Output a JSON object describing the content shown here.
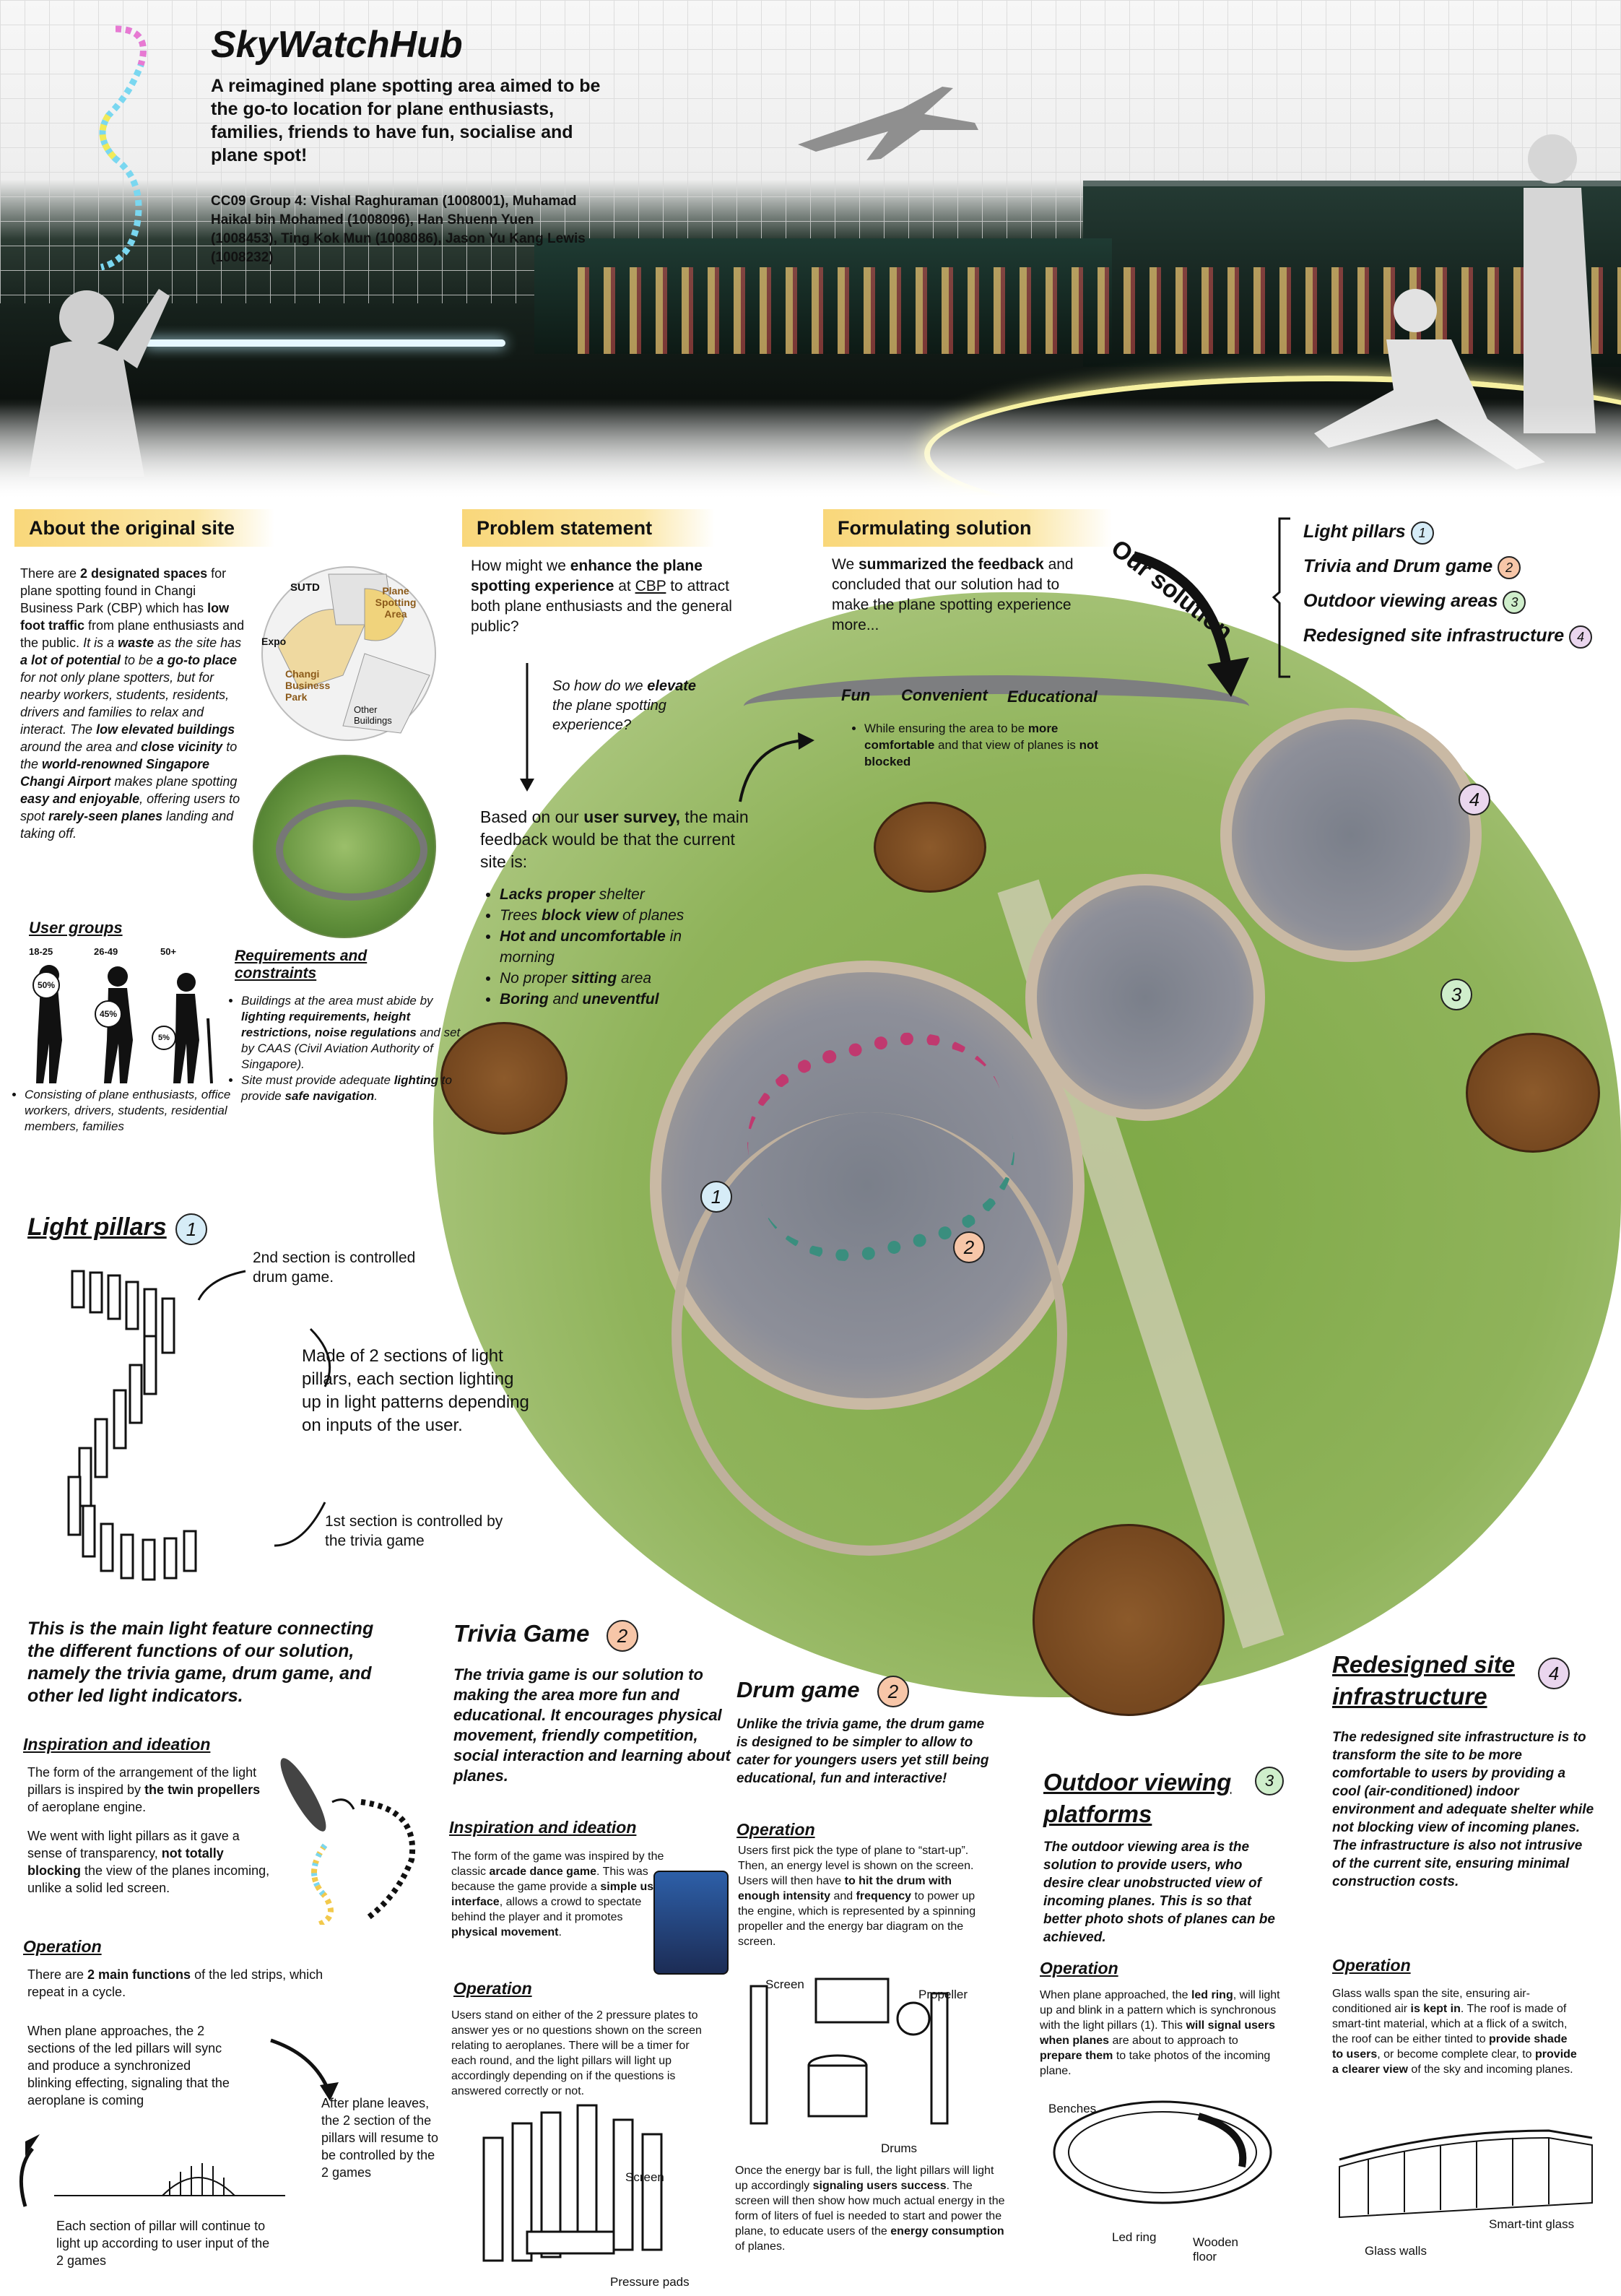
{
  "header": {
    "title": "SkyWatchHub",
    "tagline": "A reimagined plane spotting area aimed to be the go-to location for plane enthusiasts, families, friends to have fun, socialise and plane spot!",
    "credits": "CC09 Group 4: Vishal Raghuraman (1008001), Muhamad Haikal bin Mohamed (1008096), Han Shuenn Yuen (1008453), Ting Kok Mun (1008086), Jason Yu Kang Lewis (1008232)"
  },
  "original_site": {
    "heading": "About the original site",
    "para": [
      {
        "t": "There are "
      },
      {
        "t": "2 designated spaces",
        "b": true
      },
      {
        "t": " for plane spotting found in Changi Business Park (CBP) which has "
      },
      {
        "t": "low foot traffic",
        "b": true
      },
      {
        "t": " from plane enthusiasts and the public. "
      },
      {
        "t": "It is a ",
        "i": true
      },
      {
        "t": "waste",
        "b": true,
        "i": true
      },
      {
        "t": " as the site has ",
        "i": true
      },
      {
        "t": "a lot of potential",
        "b": true,
        "i": true
      },
      {
        "t": " to be ",
        "i": true
      },
      {
        "t": "a go-to place",
        "b": true,
        "i": true
      },
      {
        "t": " for not only plane spotters, but for nearby workers, students, residents, drivers and families to relax and interact. ",
        "i": true
      },
      {
        "t": "The ",
        "i": true
      },
      {
        "t": "low elevated buildings",
        "b": true,
        "i": true
      },
      {
        "t": " around the area and ",
        "i": true
      },
      {
        "t": "close vicinity",
        "b": true,
        "i": true
      },
      {
        "t": " to the ",
        "i": true
      },
      {
        "t": "world-renowned Singapore Changi Airport",
        "b": true,
        "i": true
      },
      {
        "t": " makes plane spotting ",
        "i": true
      },
      {
        "t": "easy and enjoyable",
        "b": true,
        "i": true
      },
      {
        "t": ", offering users to spot ",
        "i": true
      },
      {
        "t": "rarely-seen planes",
        "b": true,
        "i": true
      },
      {
        "t": " landing and taking off.",
        "i": true
      }
    ],
    "map_labels": [
      "SUTD",
      "Plane Spotting Area",
      "Expo",
      "Changi Business Park",
      "Other Buildings"
    ],
    "user_groups": {
      "heading": "User groups",
      "ages": [
        "18-25",
        "26-49",
        "50+"
      ],
      "shares": [
        "50%",
        "45%",
        "5%"
      ],
      "note": "Consisting of plane enthusiasts, office workers, drivers, students, residential members, families"
    },
    "requirements": {
      "heading": "Requirements and constraints",
      "item1": [
        {
          "t": "Buildings at the area must abide by ",
          "i": true
        },
        {
          "t": "lighting requirements, height restrictions, noise regulations",
          "b": true,
          "i": true
        },
        {
          "t": " and set by CAAS (Civil Aviation Authority of Singapore).",
          "i": true
        }
      ],
      "item2": [
        {
          "t": "Site must provide adequate ",
          "i": true
        },
        {
          "t": "lighting",
          "b": true,
          "i": true
        },
        {
          "t": " to provide ",
          "i": true
        },
        {
          "t": "safe navigation",
          "b": true,
          "i": true
        },
        {
          "t": ".",
          "i": true
        }
      ]
    }
  },
  "problem": {
    "heading": "Problem statement",
    "para": [
      {
        "t": "How might we "
      },
      {
        "t": "enhance the plane spotting experience",
        "b": true
      },
      {
        "t": " at "
      },
      {
        "t": "CBP",
        "u": true
      },
      {
        "t": " to attract both plane enthusiasts and the general public?"
      }
    ],
    "question": [
      {
        "t": "So how do we ",
        "i": true
      },
      {
        "t": "elevate",
        "b": true,
        "i": true
      },
      {
        "t": " the plane spotting experience?",
        "i": true
      }
    ],
    "survey": [
      {
        "t": "Based on our "
      },
      {
        "t": "user survey,",
        "b": true
      },
      {
        "t": " the main feedback would be that the current site is:"
      }
    ],
    "bullets": [
      [
        {
          "t": "Lacks proper",
          "b": true,
          "i": true
        },
        {
          "t": " shelter",
          "i": true
        }
      ],
      [
        {
          "t": "Trees ",
          "i": true
        },
        {
          "t": "block view",
          "b": true,
          "i": true
        },
        {
          "t": " of planes",
          "i": true
        }
      ],
      [
        {
          "t": "Hot and uncomfortable",
          "b": true,
          "i": true
        },
        {
          "t": " in morning",
          "i": true
        }
      ],
      [
        {
          "t": "No proper ",
          "i": true
        },
        {
          "t": "sitting",
          "b": true,
          "i": true
        },
        {
          "t": " area",
          "i": true
        }
      ],
      [
        {
          "t": "Boring",
          "b": true,
          "i": true
        },
        {
          "t": " and ",
          "i": true
        },
        {
          "t": "uneventful",
          "b": true,
          "i": true
        }
      ]
    ]
  },
  "formulating": {
    "heading": "Formulating solution",
    "para": [
      {
        "t": "We "
      },
      {
        "t": "summarized the feedback",
        "b": true
      },
      {
        "t": " and concluded that our solution had to make the plane spotting experience more..."
      }
    ],
    "words": [
      "Fun",
      "Convenient",
      "Educational"
    ],
    "note": [
      {
        "t": "While ensuring the area to be "
      },
      {
        "t": "more comfortable",
        "b": true
      },
      {
        "t": " and that view of planes is "
      },
      {
        "t": "not blocked",
        "b": true
      }
    ]
  },
  "our_solution": {
    "label": "Our solution",
    "items": [
      {
        "label": "Light pillars",
        "num": "1"
      },
      {
        "label": "Trivia and Drum game",
        "num": "2"
      },
      {
        "label": "Outdoor viewing areas",
        "num": "3"
      },
      {
        "label": "Redesigned site infrastructure",
        "num": "4"
      }
    ]
  },
  "light_pillars": {
    "heading": "Light pillars",
    "num": "1",
    "note_2nd": "2nd section is controlled drum game.",
    "note_mid": "Made of 2 sections of light pillars, each section lighting up in light patterns depending on inputs of the user.",
    "note_1st": "1st section is controlled by the trivia game",
    "summary": "This is the main light feature connecting the different functions of our solution, namely the trivia game, drum game, and other led light indicators.",
    "insp_heading": "Inspiration and ideation",
    "insp1": [
      {
        "t": "The form of the arrangement of the light pillars is inspired by "
      },
      {
        "t": "the twin propellers",
        "b": true
      },
      {
        "t": " of aeroplane engine."
      }
    ],
    "insp2": [
      {
        "t": "We went with light pillars as it gave a sense of transparency, "
      },
      {
        "t": "not totally blocking",
        "b": true
      },
      {
        "t": " the view of the planes incoming, unlike a solid led screen."
      }
    ],
    "op_heading": "Operation",
    "op1": [
      {
        "t": "There are "
      },
      {
        "t": "2 main functions",
        "b": true
      },
      {
        "t": " of the led strips, which repeat in a cycle."
      }
    ],
    "op2": "When plane approaches, the 2 sections of the led pillars will sync and produce a synchronized blinking effecting, signaling that the aeroplane is coming",
    "op3": "After plane leaves, the 2 section of the pillars will resume to be controlled by the 2 games",
    "op4": "Each section of pillar will continue to light up according to user input of the 2 games"
  },
  "trivia": {
    "heading": "Trivia Game",
    "num": "2",
    "summary": "The trivia game is our solution to making the area more fun and educational. It encourages physical movement, friendly competition, social interaction and learning about planes.",
    "insp_heading": "Inspiration and ideation",
    "insp": [
      {
        "t": "The form of the game was inspired by the classic "
      },
      {
        "t": "arcade dance game",
        "b": true
      },
      {
        "t": ". This was because the game provide a "
      },
      {
        "t": "simple user interface",
        "b": true
      },
      {
        "t": ", allows a crowd to spectate behind the player and it promotes "
      },
      {
        "t": "physical movement",
        "b": true
      },
      {
        "t": "."
      }
    ],
    "op_heading": "Operation",
    "op": "Users stand on either of the 2 pressure plates to answer yes or no questions shown on the screen relating to aeroplanes. There will be a timer for each round, and the light pillars will light up accordingly depending on if the questions is answered correctly or not.",
    "labels": [
      "Screen",
      "Pressure pads"
    ]
  },
  "drum": {
    "heading": "Drum game",
    "num": "2",
    "summary": "Unlike the trivia game, the drum game is designed to be simpler to allow to cater for youngers users yet still being educational, fun and interactive!",
    "op_heading": "Operation",
    "op": [
      {
        "t": "Users first pick the type of plane to “start-up”. Then, an energy level is shown on the screen. Users will then have "
      },
      {
        "t": "to hit the drum with enough intensity",
        "b": true
      },
      {
        "t": " and "
      },
      {
        "t": "frequency",
        "b": true
      },
      {
        "t": " to power up the engine, which is represented by a spinning propeller and the energy bar diagram on the screen."
      }
    ],
    "op2": [
      {
        "t": "Once the energy bar is full, the light pillars will light up accordingly "
      },
      {
        "t": "signaling users success",
        "b": true
      },
      {
        "t": ". The screen will then show how much actual energy in the form of liters of fuel is needed to start and power the plane, to educate users of the "
      },
      {
        "t": "energy consumption",
        "b": true
      },
      {
        "t": " of planes."
      }
    ],
    "labels": [
      "Screen",
      "Propeller",
      "Drums"
    ]
  },
  "outdoor": {
    "heading": "Outdoor viewing platforms",
    "num": "3",
    "summary": "The outdoor viewing area is the solution to provide users, who desire clear unobstructed view of incoming planes. This is so that better photo shots of planes can be achieved.",
    "op_heading": "Operation",
    "op": [
      {
        "t": "When plane approached, the "
      },
      {
        "t": "led ring",
        "b": true
      },
      {
        "t": ", will light up and blink in a pattern which is synchronous with the light pillars (1). This "
      },
      {
        "t": "will signal users when planes",
        "b": true
      },
      {
        "t": " are about to approach to "
      },
      {
        "t": "prepare them",
        "b": true
      },
      {
        "t": " to take photos of the incoming plane."
      }
    ],
    "labels": [
      "Benches",
      "Led ring",
      "Wooden floor"
    ]
  },
  "redesigned": {
    "heading": "Redesigned site infrastructure",
    "num": "4",
    "summary": "The redesigned site infrastructure is to transform the site to be more comfortable to users by providing a cool (air-conditioned) indoor environment and adequate shelter while not blocking view of incoming planes. The infrastructure is also not intrusive of the current site, ensuring minimal construction costs.",
    "op_heading": "Operation",
    "op": [
      {
        "t": "Glass walls span the site, ensuring air-conditioned air "
      },
      {
        "t": "is kept in",
        "b": true
      },
      {
        "t": ". The roof is made of smart-tint material, which at a flick of a switch, the roof can be either tinted to "
      },
      {
        "t": "provide shade to users",
        "b": true
      },
      {
        "t": ", or become complete clear, to "
      },
      {
        "t": "provide a clearer view",
        "b": true
      },
      {
        "t": " of the sky and incoming planes."
      }
    ],
    "labels": [
      "Smart-tint glass",
      "Glass walls"
    ]
  },
  "site_markers": [
    "1",
    "2",
    "3",
    "4"
  ],
  "colors": {
    "band": "#f9d77a",
    "c1": "#d6ecf7",
    "c2": "#f7c6a8",
    "c3": "#cfeecb",
    "c4": "#ead6ee",
    "grass": "#8fb35a"
  }
}
